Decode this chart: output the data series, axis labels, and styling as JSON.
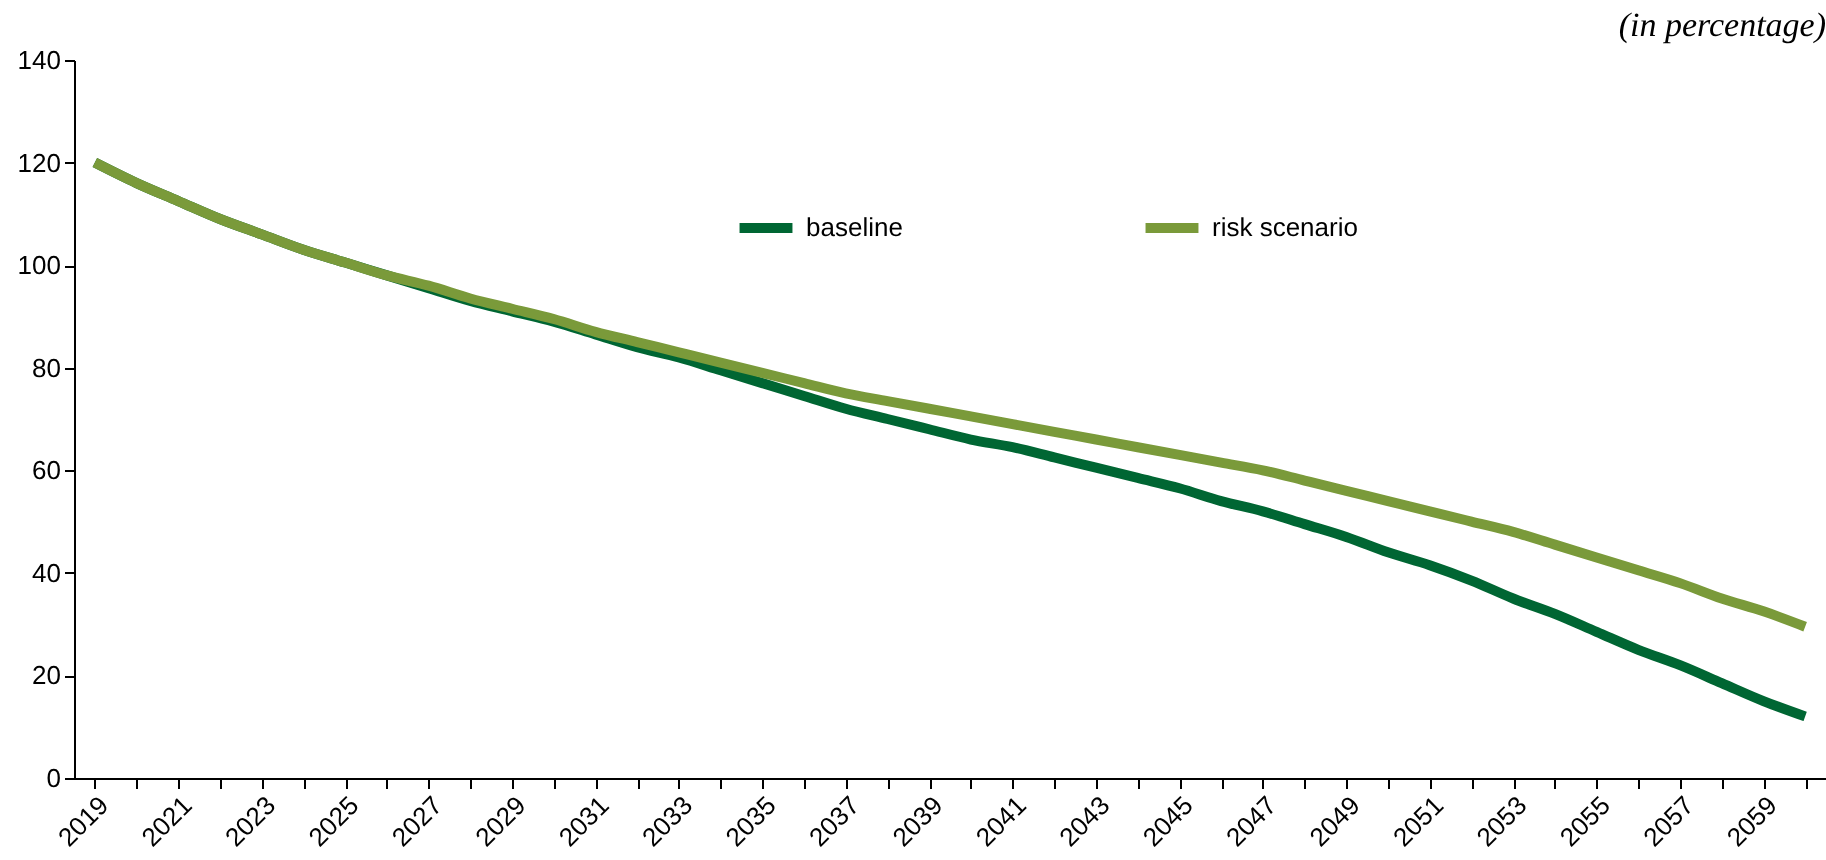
{
  "chart_data": {
    "type": "line",
    "subtitle": "(in percentage)",
    "categories": [
      "2019",
      null,
      "2021",
      null,
      "2023",
      null,
      "2025",
      null,
      "2027",
      null,
      "2029",
      null,
      "2031",
      null,
      "2033",
      null,
      "2035",
      null,
      "2037",
      null,
      "2039",
      null,
      "2041",
      null,
      "2043",
      null,
      "2045",
      null,
      "2047",
      null,
      "2049",
      null,
      "2051",
      null,
      "2053",
      null,
      "2055",
      null,
      "2057",
      null,
      "2059",
      null
    ],
    "series": [
      {
        "name": "baseline",
        "color": "#006633",
        "values": [
          120,
          116,
          112.5,
          109,
          106,
          103,
          100.5,
          98,
          95.5,
          93,
          91,
          89,
          86.5,
          84,
          82,
          79.5,
          77,
          74.5,
          72,
          70,
          68,
          66,
          64.5,
          62.5,
          60.5,
          58.5,
          56.5,
          54,
          52,
          49.5,
          47,
          44,
          41.5,
          38.5,
          35,
          32,
          28.5,
          25,
          22,
          18.5,
          15,
          12
        ]
      },
      {
        "name": "risk scenario",
        "color": "#7a9a3a",
        "values": [
          120,
          116,
          112.5,
          109,
          106,
          103,
          100.5,
          98,
          96,
          93.5,
          91.5,
          89.5,
          87,
          85,
          83,
          81,
          79,
          77,
          75,
          73.5,
          72,
          70.5,
          69,
          67.5,
          66,
          64.5,
          63,
          61.5,
          60,
          58,
          56,
          54,
          52,
          50,
          48,
          45.5,
          43,
          40.5,
          38,
          35,
          32.5,
          29.5
        ]
      }
    ],
    "ylim": [
      0,
      140
    ],
    "yticks": [
      0,
      20,
      40,
      60,
      80,
      100,
      120,
      140
    ],
    "legend": "top",
    "grid": false
  }
}
